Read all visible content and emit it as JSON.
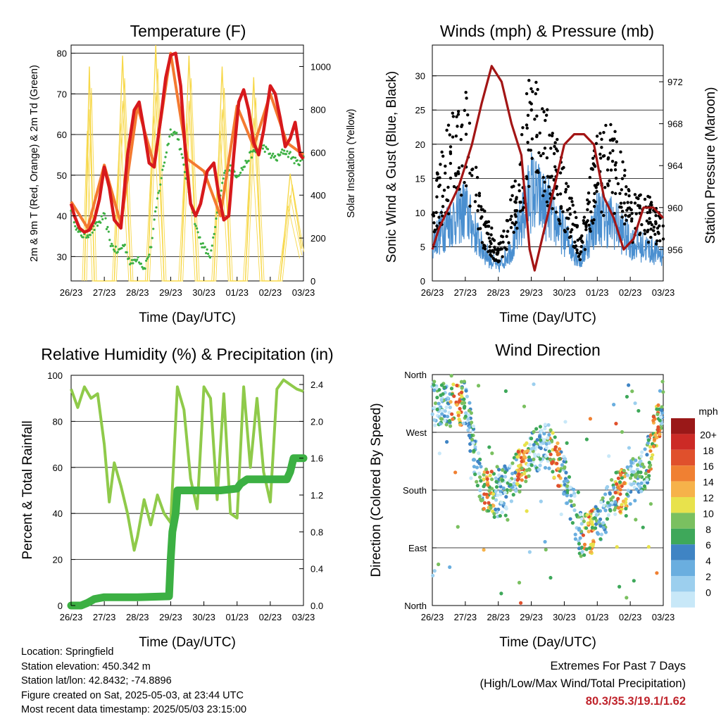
{
  "panels": {
    "temperature": {
      "title": "Temperature (F)",
      "ylabel_left": "2m & 9m T (Red, Orange) & 2m Td (Green)",
      "ylabel_right": "Solar Insolation (Yellow)",
      "xlabel": "Time (Day/UTC)",
      "left_ticks": [
        "30",
        "40",
        "50",
        "60",
        "70",
        "80"
      ],
      "right_ticks": [
        "0",
        "200",
        "400",
        "600",
        "800",
        "1000"
      ]
    },
    "winds": {
      "title": "Winds (mph) & Pressure (mb)",
      "ylabel_left": "Sonic Wind & Gust (Blue, Black)",
      "ylabel_right": "Station Pressure (Maroon)",
      "xlabel": "Time (Day/UTC)",
      "left_ticks": [
        "0",
        "5",
        "10",
        "15",
        "20",
        "25",
        "30"
      ],
      "right_ticks": [
        "956",
        "960",
        "964",
        "968",
        "972"
      ]
    },
    "humidity": {
      "title": "Relative Humidity (%) & Precipitation (in)",
      "ylabel_left": "Percent & Total Rainfall",
      "xlabel": "Time (Day/UTC)",
      "left_ticks": [
        "0",
        "20",
        "40",
        "60",
        "80",
        "100"
      ],
      "right_ticks": [
        "0.0",
        "0.4",
        "0.8",
        "1.2",
        "1.6",
        "2.0",
        "2.4"
      ]
    },
    "direction": {
      "title": "Wind Direction",
      "ylabel_left": "Direction (Colored By Speed)",
      "xlabel": "Time (Day/UTC)",
      "dir_ticks": [
        "North",
        "East",
        "South",
        "West",
        "North"
      ],
      "legend_title": "mph",
      "legend_labels": [
        "20+",
        "18",
        "16",
        "14",
        "12",
        "10",
        "8",
        "6",
        "4",
        "2",
        "0"
      ]
    }
  },
  "x_ticks": [
    "26/23",
    "27/23",
    "28/23",
    "29/23",
    "30/23",
    "01/23",
    "02/23",
    "03/23"
  ],
  "info_lines": {
    "location": "Location: Springfield",
    "elevation": "Station elevation: 450.342 m",
    "latlon": "Station lat/lon: 42.8432; -74.8896",
    "created": "Figure created on Sat, 2025-05-03, at 23:44 UTC",
    "recent": "Most recent data timestamp: 2025/05/03 23:15:00"
  },
  "extremes": {
    "line1": "Extremes For Past 7 Days",
    "line2": "(High/Low/Max Wind/Total Precipitation)",
    "values": "80.3/35.3/19.1/1.62"
  },
  "colors": {
    "temp_2m": "#d7191c",
    "temp_9m": "#f47a30",
    "dewpoint": "#3cb043",
    "solar": "#f7d84a",
    "wind": "#4a8fd0",
    "gust": "#000000",
    "pressure": "#a31515",
    "rh": "#8fca4a",
    "precip": "#3cb043",
    "speed_scale": [
      "#c8e8f8",
      "#9ccfee",
      "#6aaedf",
      "#3f84c4",
      "#3ea85a",
      "#7ac060",
      "#e8e24c",
      "#f6b24a",
      "#f08032",
      "#e0502c",
      "#cc2a26",
      "#9a1818"
    ]
  },
  "chart_data": [
    {
      "type": "line",
      "title": "Temperature (F)",
      "xlabel": "Time (Day/UTC)",
      "ylabel": "2m & 9m T (Red, Orange) & 2m Td (Green)",
      "ylabel_right": "Solar Insolation (Yellow)",
      "ylim": [
        24,
        82
      ],
      "ylim_right": [
        0,
        1100
      ],
      "x_range": [
        0,
        7
      ],
      "x_ticks": [
        "26/23",
        "27/23",
        "28/23",
        "29/23",
        "30/23",
        "01/23",
        "02/23",
        "03/23"
      ],
      "grid_y": [
        30,
        40,
        50,
        60,
        70,
        80
      ],
      "series": [
        {
          "x": [
            0,
            0.1,
            0.25,
            0.4,
            0.55,
            0.7,
            0.85,
            1.0,
            1.15,
            1.3,
            1.5,
            1.7,
            1.9,
            2.05,
            2.2,
            2.35,
            2.5,
            2.7,
            2.85,
            3.0,
            3.15,
            3.3,
            3.45,
            3.6,
            3.75,
            3.9,
            4.1,
            4.3,
            4.45,
            4.6,
            4.75,
            4.9,
            5.05,
            5.2,
            5.35,
            5.5,
            5.65,
            5.8,
            6.0,
            6.15,
            6.3,
            6.45,
            6.6,
            6.75,
            6.9,
            7.0
          ],
          "values": [
            43,
            40,
            37,
            36,
            36.5,
            39,
            44,
            52,
            47,
            39,
            37,
            55,
            66,
            68,
            61,
            53,
            52,
            64,
            74,
            79.5,
            80,
            72,
            55,
            43,
            40,
            43,
            51,
            53,
            45,
            39,
            40,
            55,
            68,
            71,
            66,
            58,
            55,
            61,
            72,
            70,
            64,
            57,
            59,
            63,
            55,
            54
          ]
        },
        {
          "x": [
            0,
            0.5,
            1.0,
            1.5,
            2.0,
            2.5,
            3.0,
            3.5,
            4.0,
            4.5,
            5.0,
            5.5,
            6.0,
            6.5,
            7.0
          ],
          "values": [
            43.5,
            37,
            52.5,
            38,
            67,
            52.5,
            80,
            54,
            51,
            40,
            67,
            57,
            70,
            58,
            55
          ]
        },
        {
          "x": [
            0,
            0.2,
            0.4,
            0.6,
            0.8,
            1.0,
            1.2,
            1.4,
            1.6,
            1.8,
            2.0,
            2.2,
            2.4,
            2.6,
            2.8,
            3.0,
            3.2,
            3.4,
            3.6,
            3.8,
            4.0,
            4.2,
            4.4,
            4.6,
            4.8,
            5.0,
            5.2,
            5.4,
            5.6,
            5.8,
            6.0,
            6.2,
            6.4,
            6.6,
            6.8,
            7.0
          ],
          "values": [
            42,
            36,
            35,
            36,
            38,
            40,
            33,
            31,
            33,
            28,
            30,
            27,
            32,
            44,
            53,
            61,
            60,
            52,
            44,
            36,
            32,
            30,
            40,
            50,
            52,
            50,
            52,
            55,
            56,
            57,
            55,
            54,
            56,
            55,
            53,
            54
          ]
        }
      ],
      "series_right": [
        {
          "x": [
            0.4,
            0.55,
            0.7,
            1.3,
            1.55,
            1.8,
            2.3,
            2.55,
            2.8,
            3.3,
            3.55,
            3.8,
            4.3,
            4.55,
            4.8,
            5.25,
            5.5,
            5.75,
            6.3,
            6.6,
            6.95
          ],
          "values": [
            0,
            1000,
            0,
            0,
            1050,
            0,
            0,
            1100,
            0,
            0,
            1050,
            0,
            0,
            1000,
            0,
            0,
            950,
            0,
            0,
            500,
            150
          ]
        }
      ]
    },
    {
      "type": "scatter",
      "title": "Winds (mph) & Pressure (mb)",
      "xlabel": "Time (Day/UTC)",
      "ylabel": "Sonic Wind & Gust (Blue, Black)",
      "ylabel_right": "Station Pressure (Maroon)",
      "ylim": [
        0,
        34.5
      ],
      "ylim_right": [
        953,
        975.5
      ],
      "x_ticks": [
        "26/23",
        "27/23",
        "28/23",
        "29/23",
        "30/23",
        "01/23",
        "02/23",
        "03/23"
      ],
      "series": [
        {
          "name": "Sonic Wind",
          "x": [
            0,
            0.5,
            1.0,
            1.5,
            2.0,
            2.5,
            3.0,
            3.5,
            4.0,
            4.5,
            5.0,
            5.5,
            6.0,
            6.5,
            7.0
          ],
          "values": [
            6,
            9,
            11,
            5,
            2,
            6,
            14,
            11,
            7,
            3,
            10,
            9,
            6,
            5,
            4
          ]
        },
        {
          "name": "Gust",
          "x": [
            0,
            0.5,
            1.0,
            1.5,
            2.0,
            2.5,
            3.0,
            3.5,
            4.0,
            4.5,
            5.0,
            5.5,
            6.0,
            6.5,
            7.0
          ],
          "values": [
            10,
            18,
            22,
            9,
            4,
            12,
            26,
            20,
            13,
            5,
            17,
            18,
            10,
            10,
            7
          ]
        }
      ],
      "pressure": {
        "x": [
          0,
          0.2,
          0.5,
          0.8,
          1.0,
          1.2,
          1.5,
          1.8,
          2.1,
          2.4,
          2.7,
          2.95,
          3.1,
          3.4,
          3.7,
          4.0,
          4.3,
          4.6,
          4.9,
          5.2,
          5.5,
          5.8,
          6.1,
          6.4,
          6.7,
          7.0
        ],
        "values": [
          956,
          958,
          960,
          962,
          964,
          966,
          970,
          973.5,
          972,
          968,
          965,
          956,
          954,
          958,
          962,
          966,
          967,
          967,
          966,
          961,
          959,
          956,
          957,
          960,
          960,
          959
        ]
      }
    },
    {
      "type": "line",
      "title": "Relative Humidity (%) & Precipitation (in)",
      "xlabel": "Time (Day/UTC)",
      "ylabel": "Percent & Total Rainfall",
      "ylim": [
        0,
        100
      ],
      "ylim_right": [
        0,
        2.5
      ],
      "x_ticks": [
        "26/23",
        "27/23",
        "28/23",
        "29/23",
        "30/23",
        "01/23",
        "02/23",
        "03/23"
      ],
      "series": [
        {
          "x": [
            0,
            0.2,
            0.4,
            0.6,
            0.8,
            1.0,
            1.15,
            1.3,
            1.5,
            1.7,
            1.9,
            2.0,
            2.2,
            2.4,
            2.6,
            2.8,
            3.0,
            3.2,
            3.4,
            3.6,
            3.8,
            4.0,
            4.2,
            4.4,
            4.6,
            4.8,
            5.0,
            5.2,
            5.4,
            5.6,
            5.8,
            6.0,
            6.2,
            6.4,
            6.6,
            6.8,
            7.0
          ],
          "values": [
            94,
            86,
            95,
            90,
            92,
            70,
            45,
            62,
            52,
            40,
            24,
            30,
            46,
            35,
            48,
            40,
            36,
            95,
            85,
            55,
            42,
            95,
            90,
            46,
            92,
            40,
            38,
            95,
            60,
            90,
            58,
            45,
            94,
            98,
            96,
            94,
            93
          ]
        },
        {
          "x": [
            0,
            0.3,
            0.5,
            0.7,
            1.0,
            2.0,
            2.95,
            3.0,
            3.05,
            3.15,
            3.2,
            4.5,
            5.0,
            5.1,
            5.3,
            6.5,
            6.6,
            6.7,
            7.0
          ],
          "values": [
            0,
            0,
            0.03,
            0.07,
            0.09,
            0.09,
            0.1,
            0.5,
            0.8,
            1.0,
            1.25,
            1.25,
            1.27,
            1.32,
            1.37,
            1.37,
            1.45,
            1.6,
            1.6
          ]
        }
      ]
    },
    {
      "type": "scatter",
      "title": "Wind Direction",
      "xlabel": "Time (Day/UTC)",
      "ylabel": "Direction (Colored By Speed)",
      "y_ticks": [
        "North",
        "East",
        "South",
        "West",
        "North"
      ],
      "ylim": [
        0,
        360
      ],
      "legend_title": "mph",
      "legend_labels": [
        "20+",
        "18",
        "16",
        "14",
        "12",
        "10",
        "8",
        "6",
        "4",
        "2",
        "0"
      ],
      "x_ticks": [
        "26/23",
        "27/23",
        "28/23",
        "29/23",
        "30/23",
        "01/23",
        "02/23",
        "03/23"
      ],
      "series": [
        {
          "name": "direction",
          "x": [
            0,
            0.5,
            1.0,
            1.5,
            2.0,
            2.5,
            3.0,
            3.5,
            4.0,
            4.5,
            5.0,
            5.5,
            6.0,
            6.5,
            7.0
          ],
          "values": [
            315,
            310,
            315,
            180,
            170,
            200,
            240,
            250,
            200,
            110,
            120,
            170,
            190,
            220,
            320
          ]
        }
      ]
    }
  ]
}
